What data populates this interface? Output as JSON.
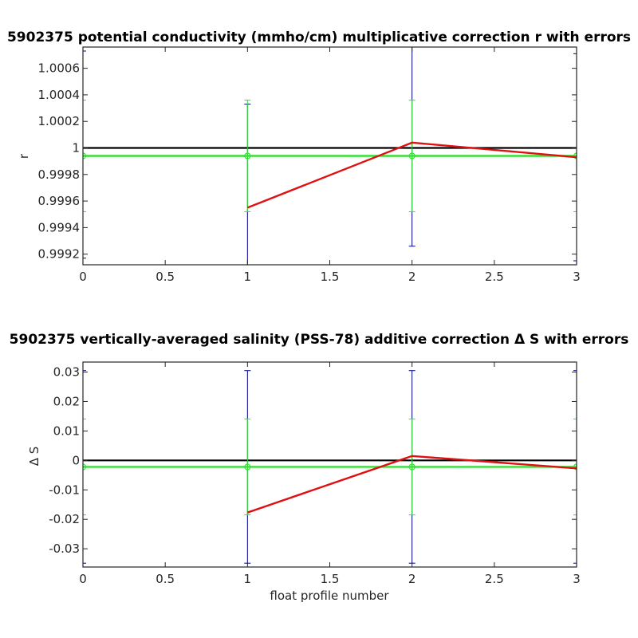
{
  "chart_data": [
    {
      "type": "line",
      "title": "5902375 potential conductivity (mmho/cm) multiplicative correction r with errors",
      "xlabel": "",
      "ylabel": "r",
      "xlim": [
        0,
        3
      ],
      "ylim": [
        0.99912,
        1.00076
      ],
      "xticks": [
        0,
        0.5,
        1,
        1.5,
        2,
        2.5,
        3
      ],
      "xtick_labels": [
        "0",
        "0.5",
        "1",
        "1.5",
        "2",
        "2.5",
        "3"
      ],
      "yticks": [
        0.9992,
        0.9994,
        0.9996,
        0.9998,
        1,
        1.0002,
        1.0004,
        1.0006
      ],
      "ytick_labels": [
        "0.9992",
        "0.9994",
        "0.9996",
        "0.9998",
        "1",
        "1.0002",
        "1.0004",
        "1.0006"
      ],
      "grid": false,
      "reference_line": {
        "y": 1,
        "color": "#000000"
      },
      "series": [
        {
          "kind": "errorbar",
          "color": "#00008B",
          "x": [
            0,
            1,
            2,
            3
          ],
          "y": [
            0.99995,
            0.99955,
            1.00004,
            0.99993
          ],
          "err": [
            0.00078,
            0.00078,
            0.00078,
            0.00078
          ]
        },
        {
          "kind": "errorbar",
          "color": "#33E033",
          "x": [
            0,
            1,
            2,
            3
          ],
          "y": [
            0.99994,
            0.99994,
            0.99994,
            0.99994
          ],
          "err": [
            0.00042,
            0.00042,
            0.00042,
            0.00042
          ]
        },
        {
          "kind": "line",
          "color": "#33E033",
          "x": [
            0,
            1,
            2,
            3
          ],
          "y": [
            0.99994,
            0.99994,
            0.99994,
            0.99994
          ],
          "marker": "circle"
        },
        {
          "kind": "line",
          "color": "#E01010",
          "x": [
            1,
            2,
            3
          ],
          "y": [
            0.99955,
            1.00004,
            0.99993
          ]
        }
      ]
    },
    {
      "type": "line",
      "title": "5902375 vertically-averaged salinity (PSS-78) additive correction Δ S with errors",
      "xlabel": "float profile number",
      "ylabel": "Δ S",
      "xlim": [
        0,
        3
      ],
      "ylim": [
        -0.0362,
        0.0334
      ],
      "xticks": [
        0,
        0.5,
        1,
        1.5,
        2,
        2.5,
        3
      ],
      "xtick_labels": [
        "0",
        "0.5",
        "1",
        "1.5",
        "2",
        "2.5",
        "3"
      ],
      "yticks": [
        -0.03,
        -0.02,
        -0.01,
        0,
        0.01,
        0.02,
        0.03
      ],
      "ytick_labels": [
        "-0.03",
        "-0.02",
        "-0.01",
        "0",
        "0.01",
        "0.02",
        "0.03"
      ],
      "grid": false,
      "reference_line": {
        "y": 0,
        "color": "#000000"
      },
      "series": [
        {
          "kind": "errorbar",
          "color": "#00008B",
          "x": [
            0,
            1,
            2,
            3
          ],
          "y": [
            -0.0022,
            -0.0022,
            -0.0022,
            -0.0022
          ],
          "err": [
            0.0327,
            0.0327,
            0.0327,
            0.0327
          ]
        },
        {
          "kind": "errorbar",
          "color": "#33E033",
          "x": [
            0,
            1,
            2,
            3
          ],
          "y": [
            -0.0022,
            -0.0022,
            -0.0022,
            -0.0022
          ],
          "err": [
            0.0163,
            0.0163,
            0.0163,
            0.0163
          ]
        },
        {
          "kind": "line",
          "color": "#33E033",
          "x": [
            0,
            1,
            2,
            3
          ],
          "y": [
            -0.0022,
            -0.0022,
            -0.0022,
            -0.0022
          ],
          "marker": "circle"
        },
        {
          "kind": "line",
          "color": "#E01010",
          "x": [
            1,
            2,
            3
          ],
          "y": [
            -0.0177,
            0.0015,
            -0.0027
          ]
        }
      ]
    }
  ]
}
